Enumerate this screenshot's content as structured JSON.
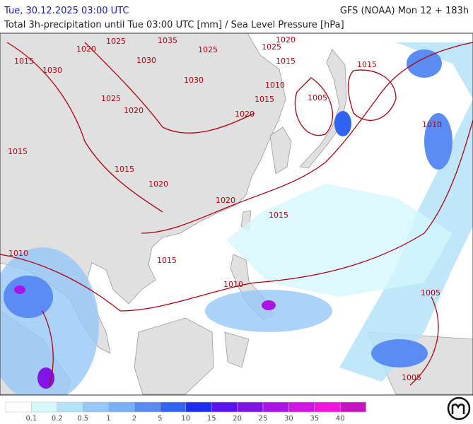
{
  "header": {
    "title": "Tue, 30.12.2025 03:00 UTC",
    "model": "GFS (NOAA) Mon 12 + 183h",
    "subtitle": "Total 3h-precipitation until Tue 03:00 UTC [mm] / Sea Level Pressure [hPa]"
  },
  "isobar_labels": [
    "1035",
    "1025",
    "1030",
    "1020",
    "1015",
    "1010",
    "1005"
  ],
  "legend": {
    "labels": [
      "0.1",
      "0.2",
      "0.5",
      "1",
      "2",
      "5",
      "10",
      "15",
      "20",
      "25",
      "30",
      "35",
      "40"
    ],
    "colors": [
      "#ffffff",
      "#d4f8fc",
      "#b4e2f8",
      "#96c8f8",
      "#78b0f8",
      "#5a8cf4",
      "#3264f4",
      "#1e2ef0",
      "#5a14f0",
      "#8214e6",
      "#aa14e6",
      "#d214e6",
      "#f014dc",
      "#c814c0"
    ]
  }
}
